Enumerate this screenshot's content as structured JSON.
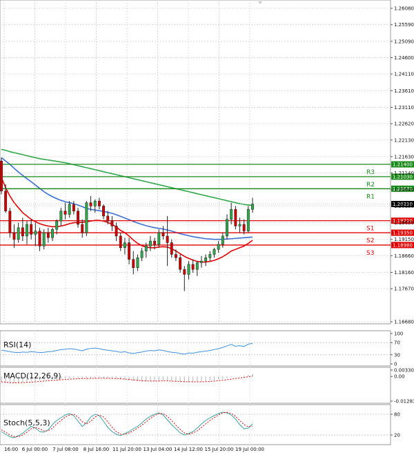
{
  "chart_data": {
    "type": "candlestick",
    "main": {
      "price_axis_ticks": [
        "1.26080",
        "1.25590",
        "1.25090",
        "1.24600",
        "1.24110",
        "1.23610",
        "1.23110",
        "1.22620",
        "1.22130",
        "1.21630",
        "1.21140",
        "1.20640",
        "1.20150",
        "1.19650",
        "1.19150",
        "1.18660",
        "1.18160",
        "1.17670",
        "1.16680"
      ],
      "ylim": [
        1.1668,
        1.2608
      ],
      "time_axis_labels": [
        "16:00",
        "6 Jul 00:00",
        "7 Jul 08:00",
        "8 Jul 16:00",
        "11 Jul 20:00",
        "13 Jul 04:00",
        "14 Jul 12:00",
        "15 Jul 20:00",
        "19 Jul 00:00"
      ],
      "candles": [
        {
          "o": 1.215,
          "h": 1.216,
          "l": 1.205,
          "c": 1.206
        },
        {
          "o": 1.206,
          "h": 1.208,
          "l": 1.1995,
          "c": 1.2
        },
        {
          "o": 1.2,
          "h": 1.201,
          "l": 1.192,
          "c": 1.1935
        },
        {
          "o": 1.1935,
          "h": 1.196,
          "l": 1.189,
          "c": 1.1915
        },
        {
          "o": 1.1915,
          "h": 1.1965,
          "l": 1.1905,
          "c": 1.195
        },
        {
          "o": 1.195,
          "h": 1.198,
          "l": 1.191,
          "c": 1.1925
        },
        {
          "o": 1.1925,
          "h": 1.197,
          "l": 1.19,
          "c": 1.196
        },
        {
          "o": 1.196,
          "h": 1.1975,
          "l": 1.1915,
          "c": 1.193
        },
        {
          "o": 1.193,
          "h": 1.1965,
          "l": 1.1895,
          "c": 1.194
        },
        {
          "o": 1.194,
          "h": 1.195,
          "l": 1.188,
          "c": 1.1895
        },
        {
          "o": 1.1895,
          "h": 1.1945,
          "l": 1.1885,
          "c": 1.1935
        },
        {
          "o": 1.1935,
          "h": 1.195,
          "l": 1.1905,
          "c": 1.192
        },
        {
          "o": 1.192,
          "h": 1.195,
          "l": 1.191,
          "c": 1.1945
        },
        {
          "o": 1.1945,
          "h": 1.1975,
          "l": 1.193,
          "c": 1.197
        },
        {
          "o": 1.197,
          "h": 1.201,
          "l": 1.1955,
          "c": 1.2
        },
        {
          "o": 1.2,
          "h": 1.2025,
          "l": 1.1975,
          "c": 1.199
        },
        {
          "o": 1.199,
          "h": 1.203,
          "l": 1.198,
          "c": 1.202
        },
        {
          "o": 1.202,
          "h": 1.203,
          "l": 1.199,
          "c": 1.2
        },
        {
          "o": 1.2,
          "h": 1.201,
          "l": 1.195,
          "c": 1.196
        },
        {
          "o": 1.196,
          "h": 1.1975,
          "l": 1.192,
          "c": 1.1935
        },
        {
          "o": 1.1935,
          "h": 1.203,
          "l": 1.1925,
          "c": 1.2025
        },
        {
          "o": 1.2025,
          "h": 1.2045,
          "l": 1.2,
          "c": 1.2015
        },
        {
          "o": 1.2015,
          "h": 1.2035,
          "l": 1.1995,
          "c": 1.203
        },
        {
          "o": 1.203,
          "h": 1.204,
          "l": 1.2005,
          "c": 1.2015
        },
        {
          "o": 1.2015,
          "h": 1.202,
          "l": 1.1975,
          "c": 1.1985
        },
        {
          "o": 1.1985,
          "h": 1.2,
          "l": 1.196,
          "c": 1.197
        },
        {
          "o": 1.197,
          "h": 1.1985,
          "l": 1.194,
          "c": 1.1955
        },
        {
          "o": 1.1955,
          "h": 1.1965,
          "l": 1.191,
          "c": 1.1925
        },
        {
          "o": 1.1925,
          "h": 1.1935,
          "l": 1.188,
          "c": 1.189
        },
        {
          "o": 1.189,
          "h": 1.192,
          "l": 1.187,
          "c": 1.1905
        },
        {
          "o": 1.1905,
          "h": 1.192,
          "l": 1.184,
          "c": 1.1855
        },
        {
          "o": 1.1855,
          "h": 1.188,
          "l": 1.181,
          "c": 1.183
        },
        {
          "o": 1.183,
          "h": 1.187,
          "l": 1.182,
          "c": 1.186
        },
        {
          "o": 1.186,
          "h": 1.189,
          "l": 1.185,
          "c": 1.188
        },
        {
          "o": 1.188,
          "h": 1.1905,
          "l": 1.186,
          "c": 1.1895
        },
        {
          "o": 1.1895,
          "h": 1.1925,
          "l": 1.188,
          "c": 1.191
        },
        {
          "o": 1.191,
          "h": 1.192,
          "l": 1.1885,
          "c": 1.19
        },
        {
          "o": 1.19,
          "h": 1.1945,
          "l": 1.189,
          "c": 1.1935
        },
        {
          "o": 1.1935,
          "h": 1.1955,
          "l": 1.1915,
          "c": 1.1925
        },
        {
          "o": 1.1925,
          "h": 1.1985,
          "l": 1.1835,
          "c": 1.1905
        },
        {
          "o": 1.1905,
          "h": 1.1915,
          "l": 1.186,
          "c": 1.187
        },
        {
          "o": 1.187,
          "h": 1.1885,
          "l": 1.185,
          "c": 1.186
        },
        {
          "o": 1.186,
          "h": 1.187,
          "l": 1.1815,
          "c": 1.1825
        },
        {
          "o": 1.1825,
          "h": 1.1835,
          "l": 1.176,
          "c": 1.181
        },
        {
          "o": 1.181,
          "h": 1.185,
          "l": 1.1795,
          "c": 1.184
        },
        {
          "o": 1.184,
          "h": 1.1855,
          "l": 1.1815,
          "c": 1.1825
        },
        {
          "o": 1.1825,
          "h": 1.185,
          "l": 1.1805,
          "c": 1.1845
        },
        {
          "o": 1.1845,
          "h": 1.1865,
          "l": 1.183,
          "c": 1.185
        },
        {
          "o": 1.185,
          "h": 1.187,
          "l": 1.1835,
          "c": 1.186
        },
        {
          "o": 1.186,
          "h": 1.188,
          "l": 1.185,
          "c": 1.187
        },
        {
          "o": 1.187,
          "h": 1.189,
          "l": 1.186,
          "c": 1.1885
        },
        {
          "o": 1.1885,
          "h": 1.191,
          "l": 1.1875,
          "c": 1.19
        },
        {
          "o": 1.19,
          "h": 1.1935,
          "l": 1.189,
          "c": 1.1925
        },
        {
          "o": 1.1925,
          "h": 1.199,
          "l": 1.1915,
          "c": 1.1975
        },
        {
          "o": 1.1975,
          "h": 1.2025,
          "l": 1.196,
          "c": 1.2005
        },
        {
          "o": 1.2005,
          "h": 1.2015,
          "l": 1.1945,
          "c": 1.1955
        },
        {
          "o": 1.1955,
          "h": 1.198,
          "l": 1.1935,
          "c": 1.196
        },
        {
          "o": 1.196,
          "h": 1.1975,
          "l": 1.193,
          "c": 1.194
        },
        {
          "o": 1.194,
          "h": 1.2015,
          "l": 1.1935,
          "c": 1.2005
        },
        {
          "o": 1.2005,
          "h": 1.204,
          "l": 1.1995,
          "c": 1.2021
        }
      ],
      "ma_fast_color": "#e00000",
      "ma_mid_color": "#3b6fd6",
      "ma_slow_color": "#2ea84a",
      "ma_fast": [
        1.21,
        1.207,
        1.2045,
        1.2025,
        1.201,
        1.1995,
        1.1985,
        1.1975,
        1.1968,
        1.1962,
        1.1958,
        1.1955,
        1.1953,
        1.1953,
        1.1955,
        1.1958,
        1.1962,
        1.1965,
        1.1966,
        1.1966,
        1.1968,
        1.197,
        1.1972,
        1.1972,
        1.197,
        1.1966,
        1.196,
        1.1952,
        1.1942,
        1.1935,
        1.1925,
        1.1913,
        1.1903,
        1.1896,
        1.1892,
        1.189,
        1.189,
        1.1892,
        1.1893,
        1.1892,
        1.1887,
        1.188,
        1.1872,
        1.1864,
        1.1858,
        1.1853,
        1.1849,
        1.1847,
        1.1847,
        1.1849,
        1.1852,
        1.1857,
        1.1863,
        1.1871,
        1.188,
        1.1885,
        1.189,
        1.1895,
        1.1903,
        1.1912
      ],
      "ma_mid": [
        1.216,
        1.215,
        1.214,
        1.2128,
        1.2117,
        1.2107,
        1.2097,
        1.2088,
        1.2078,
        1.2068,
        1.2058,
        1.205,
        1.2043,
        1.2037,
        1.2032,
        1.2028,
        1.2025,
        1.2022,
        1.2018,
        1.2013,
        1.2008,
        1.2005,
        1.2003,
        1.2001,
        1.1999,
        1.1996,
        1.1993,
        1.1989,
        1.1984,
        1.1979,
        1.1974,
        1.1969,
        1.1964,
        1.196,
        1.1956,
        1.1953,
        1.195,
        1.1948,
        1.1946,
        1.1943,
        1.194,
        1.1936,
        1.1932,
        1.1929,
        1.1926,
        1.1923,
        1.1921,
        1.1919,
        1.1917,
        1.1916,
        1.1915,
        1.1915,
        1.1915,
        1.1916,
        1.1917,
        1.1918,
        1.1919,
        1.192,
        1.1921,
        1.1922
      ],
      "ma_slow": [
        1.2185,
        1.2182,
        1.2178,
        1.2175,
        1.2172,
        1.2169,
        1.2166,
        1.2163,
        1.216,
        1.2157,
        1.2155,
        1.2153,
        1.2151,
        1.2149,
        1.2147,
        1.2145,
        1.2142,
        1.2139,
        1.2136,
        1.2133,
        1.213,
        1.2127,
        1.2124,
        1.2121,
        1.2118,
        1.2115,
        1.2112,
        1.2109,
        1.2106,
        1.2103,
        1.21,
        1.2097,
        1.2094,
        1.2091,
        1.2088,
        1.2085,
        1.2082,
        1.2079,
        1.2076,
        1.2073,
        1.207,
        1.2067,
        1.2064,
        1.2061,
        1.2058,
        1.2055,
        1.2052,
        1.2049,
        1.2046,
        1.2043,
        1.204,
        1.2037,
        1.2034,
        1.2031,
        1.2028,
        1.2025,
        1.2022,
        1.202,
        1.2018,
        1.2017
      ],
      "levels": [
        {
          "name": "R3",
          "value": 1.214,
          "label": "1.21400",
          "color": "#1a8a1a"
        },
        {
          "name": "R2",
          "value": 1.2103,
          "label": "1.21030",
          "color": "#1a8a1a"
        },
        {
          "name": "R1",
          "value": 1.2067,
          "label": "1.20670",
          "color": "#1a8a1a"
        },
        {
          "name": "S1",
          "value": 1.1971,
          "label": "1.19710",
          "color": "#e00000"
        },
        {
          "name": "S2",
          "value": 1.1935,
          "label": "1.19350",
          "color": "#e00000"
        },
        {
          "name": "S3",
          "value": 1.1898,
          "label": "1.18980",
          "color": "#e00000"
        }
      ],
      "current_price": {
        "value": 1.2021,
        "label": "1.20210",
        "color": "#000000"
      },
      "up_color": "#2ea84a",
      "down_color": "#d40000"
    },
    "rsi": {
      "title": "RSI(14)",
      "ticks": [
        "100",
        "70",
        "30",
        "0"
      ],
      "ylim": [
        0,
        100
      ],
      "color": "#3b8fe0",
      "values": [
        45,
        43,
        40,
        38,
        37,
        39,
        38,
        40,
        39,
        37,
        38,
        40,
        41,
        44,
        47,
        48,
        50,
        49,
        46,
        43,
        48,
        51,
        52,
        50,
        47,
        45,
        43,
        41,
        38,
        40,
        36,
        34,
        37,
        39,
        42,
        44,
        43,
        46,
        44,
        41,
        38,
        37,
        34,
        32,
        36,
        35,
        38,
        40,
        42,
        44,
        47,
        50,
        54,
        59,
        64,
        58,
        60,
        57,
        65,
        67
      ]
    },
    "macd": {
      "title": "MACD(12,26,9)",
      "ticks": [
        "0.003306",
        "0.00",
        "-0.012832"
      ],
      "ylim": [
        -0.012832,
        0.003306
      ],
      "bar_color": "#c0c0c0",
      "signal_color": "#e00000",
      "bars": [
        -0.003,
        -0.0034,
        -0.0036,
        -0.0035,
        -0.0033,
        -0.0031,
        -0.0029,
        -0.0026,
        -0.0024,
        -0.0022,
        -0.002,
        -0.0019,
        -0.0017,
        -0.0015,
        -0.0013,
        -0.0011,
        -0.001,
        -0.0009,
        -0.0009,
        -0.001,
        -0.0009,
        -0.0008,
        -0.0008,
        -0.0008,
        -0.0009,
        -0.001,
        -0.0011,
        -0.0013,
        -0.0016,
        -0.0018,
        -0.0021,
        -0.0024,
        -0.0026,
        -0.0027,
        -0.0027,
        -0.0026,
        -0.0025,
        -0.0023,
        -0.0022,
        -0.0023,
        -0.0025,
        -0.0027,
        -0.0029,
        -0.0031,
        -0.0031,
        -0.003,
        -0.0029,
        -0.0027,
        -0.0025,
        -0.0022,
        -0.0019,
        -0.0016,
        -0.0012,
        -0.0008,
        -0.0004,
        -0.0001,
        0.0002,
        0.0005,
        0.0009,
        0.0013
      ],
      "signal": [
        -0.0028,
        -0.003,
        -0.0032,
        -0.0033,
        -0.0033,
        -0.0032,
        -0.0031,
        -0.003,
        -0.0028,
        -0.0026,
        -0.0024,
        -0.0022,
        -0.0021,
        -0.0019,
        -0.0017,
        -0.0016,
        -0.0014,
        -0.0013,
        -0.0012,
        -0.0011,
        -0.0011,
        -0.001,
        -0.001,
        -0.0009,
        -0.0009,
        -0.001,
        -0.001,
        -0.0011,
        -0.0012,
        -0.0014,
        -0.0016,
        -0.0018,
        -0.002,
        -0.0022,
        -0.0023,
        -0.0024,
        -0.0024,
        -0.0024,
        -0.0023,
        -0.0023,
        -0.0024,
        -0.0025,
        -0.0026,
        -0.0027,
        -0.0028,
        -0.0028,
        -0.0028,
        -0.0028,
        -0.0027,
        -0.0026,
        -0.0024,
        -0.0022,
        -0.002,
        -0.0017,
        -0.0014,
        -0.0011,
        -0.0008,
        -0.0005,
        -0.0002,
        0.0002
      ]
    },
    "stoch": {
      "title": "Stoch(5,5,3)",
      "ticks": [
        "80",
        "20"
      ],
      "ylim": [
        0,
        100
      ],
      "main_color": "#3aa3a3",
      "signal_color": "#e00000",
      "main": [
        30,
        22,
        15,
        12,
        18,
        25,
        35,
        45,
        40,
        30,
        28,
        35,
        50,
        62,
        70,
        78,
        82,
        76,
        60,
        45,
        55,
        72,
        80,
        76,
        60,
        42,
        30,
        22,
        18,
        24,
        30,
        38,
        45,
        55,
        66,
        74,
        80,
        84,
        78,
        64,
        50,
        38,
        26,
        20,
        24,
        30,
        40,
        52,
        62,
        70,
        76,
        82,
        86,
        84,
        78,
        66,
        50,
        38,
        40,
        52
      ],
      "signal": [
        35,
        28,
        20,
        15,
        15,
        20,
        28,
        38,
        42,
        38,
        32,
        32,
        40,
        52,
        62,
        72,
        78,
        80,
        72,
        58,
        52,
        60,
        72,
        78,
        72,
        58,
        42,
        30,
        22,
        22,
        26,
        32,
        40,
        48,
        58,
        68,
        76,
        82,
        82,
        74,
        62,
        48,
        36,
        26,
        22,
        26,
        32,
        42,
        52,
        62,
        70,
        78,
        84,
        86,
        82,
        74,
        62,
        50,
        44,
        46
      ]
    }
  }
}
